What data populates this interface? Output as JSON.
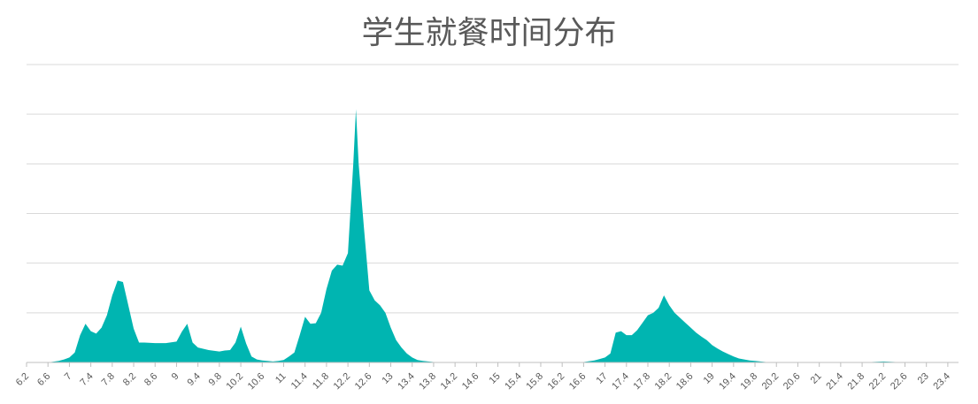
{
  "chart_data": {
    "type": "area",
    "title": "学生就餐时间分布",
    "xlabel": "",
    "ylabel": "",
    "grid": true,
    "y_axis_labels_visible": false,
    "color": "#00b5b1",
    "tick_labels": [
      "6.2",
      "6.6",
      "7",
      "7.4",
      "7.8",
      "8.2",
      "8.6",
      "9",
      "9.4",
      "9.8",
      "10.2",
      "10.6",
      "11",
      "11.4",
      "11.8",
      "12.2",
      "12.6",
      "13",
      "13.4",
      "13.8",
      "14.2",
      "14.6",
      "15",
      "15.4",
      "15.8",
      "16.2",
      "16.6",
      "17",
      "17.4",
      "17.8",
      "18.2",
      "18.6",
      "19",
      "19.4",
      "19.8",
      "20.2",
      "20.6",
      "21",
      "21.4",
      "21.8",
      "22.2",
      "22.6",
      "23",
      "23.4"
    ],
    "xlim": [
      6.2,
      23.6
    ],
    "ylim": [
      0,
      6
    ],
    "series": [
      {
        "x": [
          6.2,
          6.4,
          6.6,
          6.8,
          6.9,
          7.0,
          7.1,
          7.2,
          7.3,
          7.4,
          7.5,
          7.6,
          7.7,
          7.8,
          7.9,
          8.0,
          8.1,
          8.2,
          8.3,
          8.4,
          8.6,
          8.8,
          9.0,
          9.1,
          9.2,
          9.3,
          9.4,
          9.6,
          9.8,
          9.9,
          10.0,
          10.1,
          10.2,
          10.3,
          10.4,
          10.5,
          10.6,
          10.7,
          10.8,
          10.9,
          11.0,
          11.1,
          11.2,
          11.3,
          11.4,
          11.5,
          11.6,
          11.7,
          11.8,
          11.9,
          12.0,
          12.1,
          12.2,
          12.3,
          12.35,
          12.4,
          12.5,
          12.6,
          12.7,
          12.8,
          12.9,
          13.0,
          13.1,
          13.2,
          13.3,
          13.4,
          13.5,
          13.6,
          13.7,
          13.8,
          14.0,
          14.2,
          14.4,
          14.6,
          15.0,
          15.4,
          15.8,
          16.2,
          16.4,
          16.6,
          16.8,
          16.9,
          17.0,
          17.1,
          17.2,
          17.3,
          17.4,
          17.5,
          17.6,
          17.7,
          17.8,
          17.9,
          18.0,
          18.1,
          18.2,
          18.3,
          18.4,
          18.5,
          18.6,
          18.7,
          18.8,
          18.9,
          19.0,
          19.1,
          19.2,
          19.3,
          19.4,
          19.5,
          19.6,
          19.7,
          19.8,
          20.0,
          20.2,
          20.4,
          20.6,
          21.0,
          21.4,
          21.8,
          22.2,
          22.6,
          23.0,
          23.4,
          23.6
        ],
        "values": [
          0.0,
          0.0,
          0.0,
          0.03,
          0.06,
          0.1,
          0.2,
          0.55,
          0.78,
          0.63,
          0.58,
          0.7,
          0.95,
          1.35,
          1.65,
          1.62,
          1.15,
          0.68,
          0.4,
          0.4,
          0.39,
          0.39,
          0.42,
          0.62,
          0.78,
          0.4,
          0.3,
          0.25,
          0.22,
          0.24,
          0.25,
          0.4,
          0.72,
          0.38,
          0.12,
          0.06,
          0.04,
          0.03,
          0.02,
          0.03,
          0.05,
          0.12,
          0.2,
          0.55,
          0.92,
          0.78,
          0.79,
          1.0,
          1.48,
          1.85,
          1.97,
          1.95,
          2.2,
          4.0,
          5.1,
          4.0,
          2.7,
          1.45,
          1.25,
          1.15,
          1.0,
          0.7,
          0.45,
          0.3,
          0.18,
          0.1,
          0.05,
          0.03,
          0.02,
          0.01,
          0.0,
          0.0,
          0.0,
          0.0,
          0.0,
          0.0,
          0.0,
          0.0,
          0.0,
          0.01,
          0.04,
          0.07,
          0.1,
          0.18,
          0.6,
          0.63,
          0.55,
          0.55,
          0.65,
          0.8,
          0.95,
          1.0,
          1.1,
          1.35,
          1.15,
          1.0,
          0.9,
          0.8,
          0.7,
          0.6,
          0.52,
          0.45,
          0.35,
          0.28,
          0.22,
          0.17,
          0.12,
          0.08,
          0.06,
          0.04,
          0.03,
          0.01,
          0.0,
          0.0,
          0.0,
          0.0,
          0.0,
          0.0,
          0.02,
          0.0,
          0.0,
          0.0,
          0.0
        ]
      }
    ]
  }
}
